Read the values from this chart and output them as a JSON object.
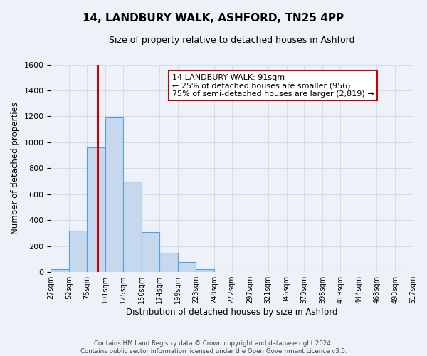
{
  "title": "14, LANDBURY WALK, ASHFORD, TN25 4PP",
  "subtitle": "Size of property relative to detached houses in Ashford",
  "xlabel": "Distribution of detached houses by size in Ashford",
  "ylabel": "Number of detached properties",
  "bin_labels": [
    "27sqm",
    "52sqm",
    "76sqm",
    "101sqm",
    "125sqm",
    "150sqm",
    "174sqm",
    "199sqm",
    "223sqm",
    "248sqm",
    "272sqm",
    "297sqm",
    "321sqm",
    "346sqm",
    "370sqm",
    "395sqm",
    "419sqm",
    "444sqm",
    "468sqm",
    "493sqm",
    "517sqm"
  ],
  "bin_edges": [
    27,
    52,
    76,
    101,
    125,
    150,
    174,
    199,
    223,
    248,
    272,
    297,
    321,
    346,
    370,
    395,
    419,
    444,
    468,
    493,
    517
  ],
  "bar_heights": [
    25,
    320,
    960,
    1190,
    700,
    310,
    150,
    75,
    20,
    0,
    0,
    0,
    0,
    0,
    0,
    0,
    0,
    0,
    0,
    0
  ],
  "bar_color": "#c5d8ed",
  "bar_edge_color": "#5a9fd4",
  "ylim": [
    0,
    1600
  ],
  "yticks": [
    0,
    200,
    400,
    600,
    800,
    1000,
    1200,
    1400,
    1600
  ],
  "vline_x": 91,
  "vline_color": "#cc0000",
  "annotation_text": "14 LANDBURY WALK: 91sqm\n← 25% of detached houses are smaller (956)\n75% of semi-detached houses are larger (2,819) →",
  "annotation_box_color": "#ffffff",
  "annotation_box_edge": "#cc0000",
  "footer_text": "Contains HM Land Registry data © Crown copyright and database right 2024.\nContains public sector information licensed under the Open Government Licence v3.0.",
  "grid_color": "#d0d8e8",
  "bg_color": "#eef2f8"
}
